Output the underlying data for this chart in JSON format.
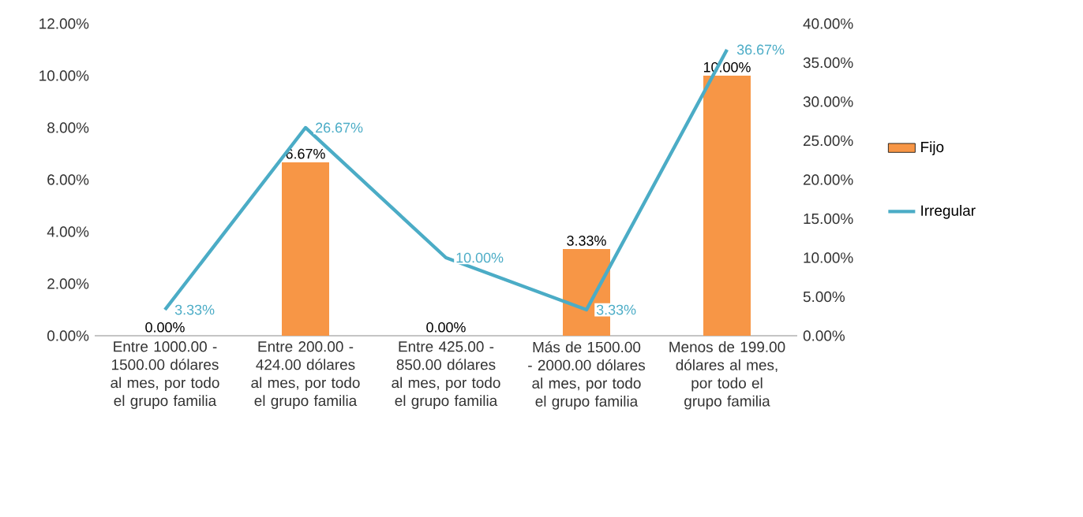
{
  "chart_data": {
    "type": "bar",
    "categories": [
      "Entre 1000.00 - 1500.00 dólares al mes, por todo el grupo familia",
      "Entre 200.00 - 424.00 dólares al mes, por todo el grupo familia",
      "Entre 425.00 - 850.00 dólares al mes, por todo el grupo familia",
      "Más de 1500.00 - 2000.00 dólares al mes, por todo el grupo familia",
      "Menos de 199.00 dólares al mes, por todo el grupo familia"
    ],
    "series": [
      {
        "name": "Fijo",
        "color": "#f79646",
        "values": [
          0.0,
          6.67,
          0.0,
          3.33,
          10.0
        ],
        "value_labels": [
          "0.00%",
          "6.67%",
          "0.00%",
          "3.33%",
          "10.00%"
        ]
      },
      {
        "name": "Irregular",
        "type": "line",
        "axis": "y2",
        "color": "#4bacc6",
        "values": [
          3.33,
          26.67,
          10.0,
          3.33,
          36.67
        ],
        "value_labels": [
          "3.33%",
          "26.67%",
          "10.00%",
          "3.33%",
          "36.67%"
        ]
      }
    ],
    "ylim": [
      0,
      12
    ],
    "yticks": [
      {
        "value": 0,
        "label": "0.00%"
      },
      {
        "value": 2,
        "label": "2.00%"
      },
      {
        "value": 4,
        "label": "4.00%"
      },
      {
        "value": 6,
        "label": "6.00%"
      },
      {
        "value": 8,
        "label": "8.00%"
      },
      {
        "value": 10,
        "label": "10.00%"
      },
      {
        "value": 12,
        "label": "12.00%"
      }
    ],
    "y2lim": [
      0,
      40
    ],
    "y2ticks": [
      {
        "value": 0,
        "label": "0.00%"
      },
      {
        "value": 5,
        "label": "5.00%"
      },
      {
        "value": 10,
        "label": "10.00%"
      },
      {
        "value": 15,
        "label": "15.00%"
      },
      {
        "value": 20,
        "label": "20.00%"
      },
      {
        "value": 25,
        "label": "25.00%"
      },
      {
        "value": 30,
        "label": "30.00%"
      },
      {
        "value": 35,
        "label": "35.00%"
      },
      {
        "value": 40,
        "label": "40.00%"
      }
    ],
    "legend": "right"
  }
}
